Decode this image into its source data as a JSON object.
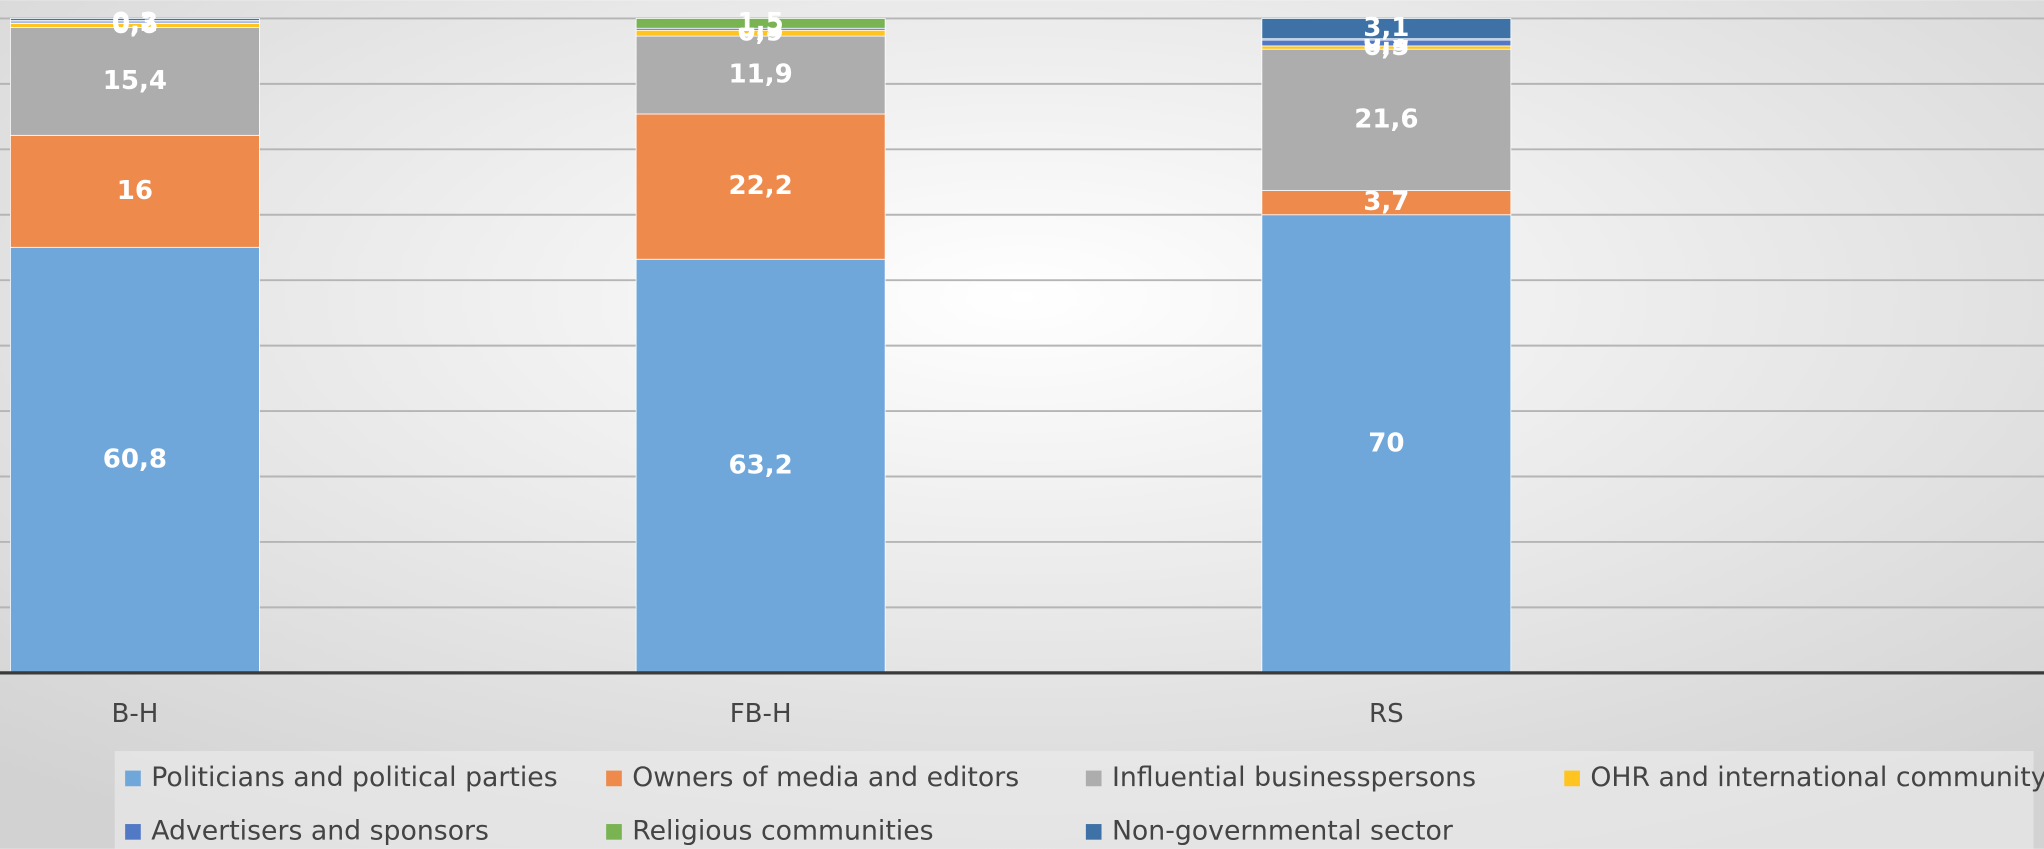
{
  "chart_data": {
    "type": "bar",
    "stacking": "percent",
    "categories": [
      "B-H",
      "FB-H",
      "RS"
    ],
    "series": [
      {
        "name": "Politicians and political parties",
        "color": "#6fa7db",
        "values": [
          60.8,
          63.2,
          70
        ],
        "value_labels": [
          "60,8",
          "63,2",
          "70"
        ]
      },
      {
        "name": "Owners of media and editors",
        "color": "#ee8a4c",
        "values": [
          16,
          22.2,
          3.7
        ],
        "value_labels": [
          "16",
          "22,2",
          "3,7"
        ]
      },
      {
        "name": "Influential businesspersons",
        "color": "#adadad",
        "values": [
          15.4,
          11.9,
          21.6
        ],
        "value_labels": [
          "15,4",
          "11,9",
          "21,6"
        ]
      },
      {
        "name": "OHR and international community",
        "color": "#ffc41f",
        "values": [
          0.6,
          0.9,
          0.5
        ],
        "value_labels": [
          "0,6",
          "0,9",
          "0,5"
        ]
      },
      {
        "name": "Advertisers and sponsors",
        "color": "#5279c6",
        "values": [
          0.2,
          0.3,
          0.9
        ],
        "value_labels": [
          "0,2",
          "0,3",
          "0,9"
        ]
      },
      {
        "name": "Religious communities",
        "color": "#79b352",
        "values": [
          0.2,
          1.5,
          0.2
        ],
        "value_labels": [
          "0,2",
          "1,5",
          "0,2"
        ]
      },
      {
        "name": "Non-governmental sector",
        "color": "#3e72a6",
        "values": [
          0.3,
          null,
          3.1
        ],
        "value_labels": [
          "0,3",
          null,
          "3,1"
        ]
      }
    ],
    "ylim": [
      0,
      100
    ],
    "yticks": [
      0,
      10,
      20,
      30,
      40,
      50,
      60,
      70,
      80,
      90,
      100
    ],
    "grid": true,
    "legend": "bottom"
  }
}
